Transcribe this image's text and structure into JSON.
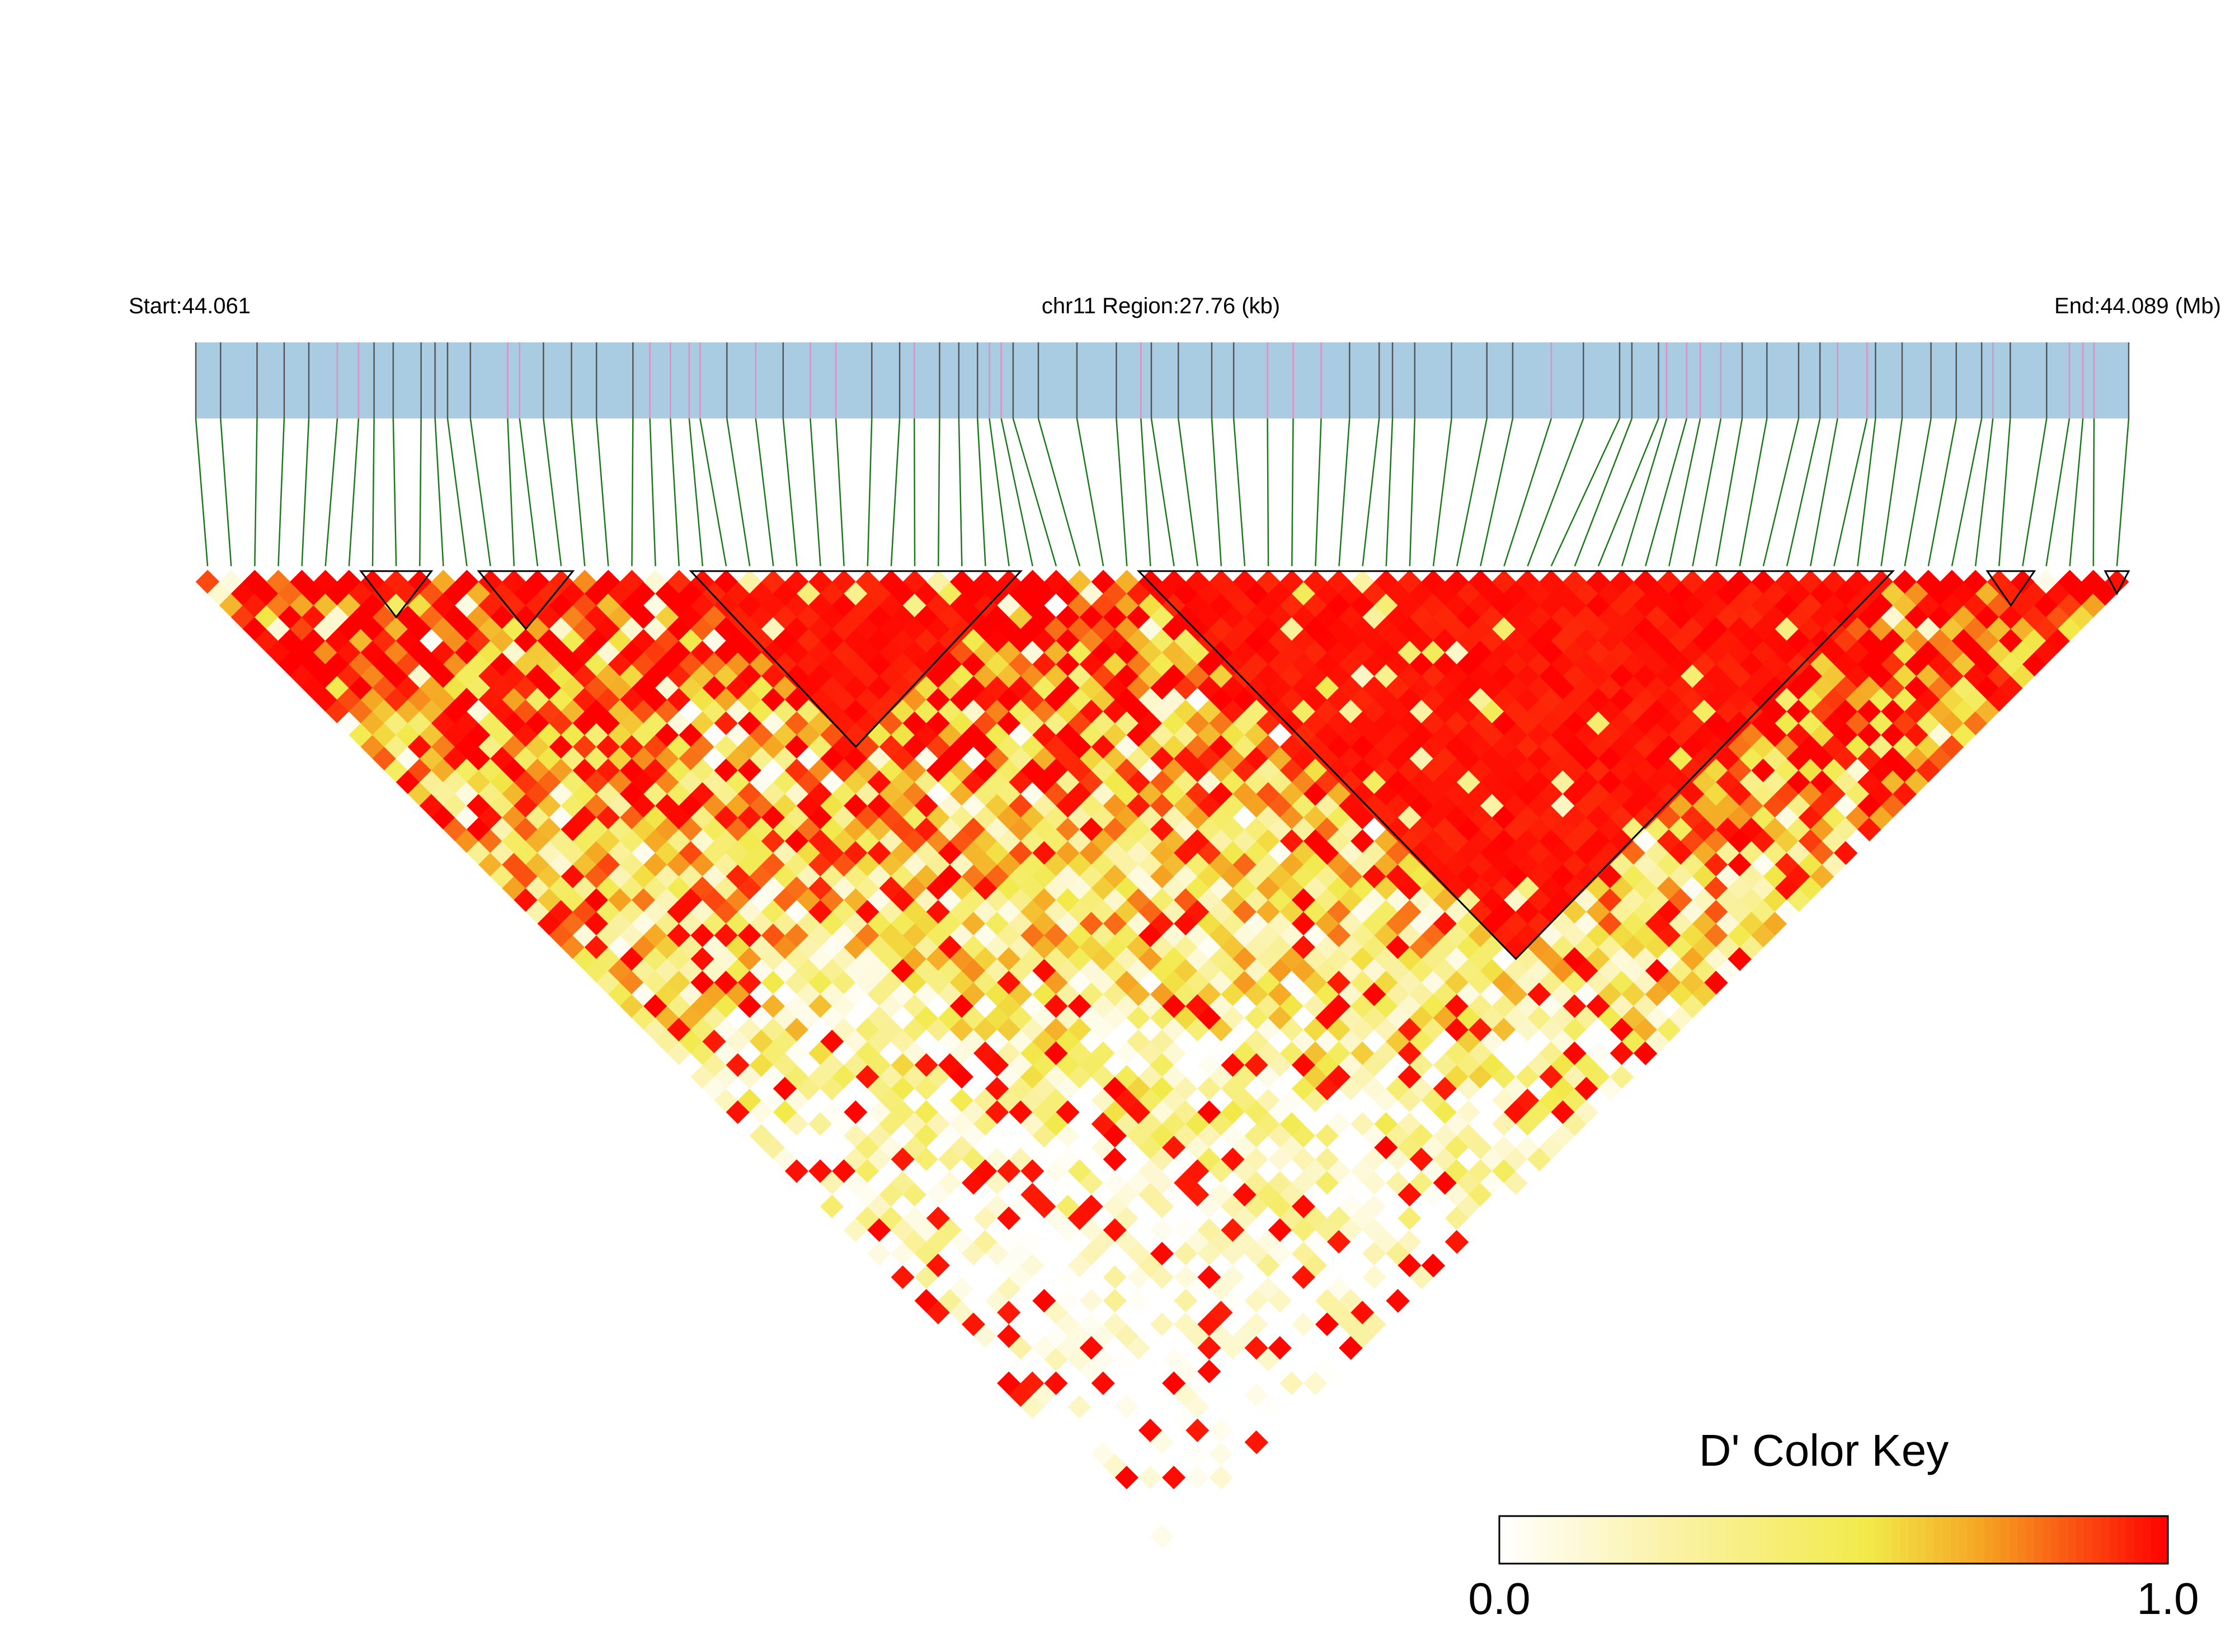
{
  "header": {
    "start_label": "Start:44.061",
    "region_label": "chr11 Region:27.76 (kb)",
    "end_label": "End:44.089 (Mb)"
  },
  "colors": {
    "track_fill": "#a9cce3",
    "tick_dark": "#555555",
    "tick_pink": "#e08fc0",
    "connector": "#1a7a1a",
    "block_outline": "#000000",
    "scale": [
      "#ffffff",
      "#fbf2a8",
      "#f2ea4a",
      "#f5a623",
      "#ff0000"
    ]
  },
  "color_key": {
    "title": "D' Color Key",
    "min_label": "0.0",
    "max_label": "1.0",
    "min": 0.0,
    "max": 1.0
  },
  "chart_data": {
    "type": "heatmap",
    "title": "chr11 Region:27.76 (kb)",
    "measure": "D'",
    "region_start_mb": 44.061,
    "region_end_mb": 44.089,
    "region_length_kb": 27.76,
    "n_snps": 82,
    "ld_blocks": [
      [
        8,
        10
      ],
      [
        13,
        16
      ],
      [
        22,
        35
      ],
      [
        41,
        72
      ],
      [
        77,
        78
      ],
      [
        82,
        82
      ]
    ],
    "pink_snp_indices": [
      5,
      6,
      13,
      14,
      19,
      20,
      21,
      22,
      24,
      26,
      27,
      30,
      34,
      35,
      40,
      45,
      46,
      47,
      55,
      60,
      61,
      62,
      63,
      68,
      69,
      75,
      78,
      79,
      80
    ],
    "dprime_estimated": "pairwise D' values read from colour: near 1.0 along diagonal and within blocks, decaying to 0.2-0.7 with distance"
  }
}
